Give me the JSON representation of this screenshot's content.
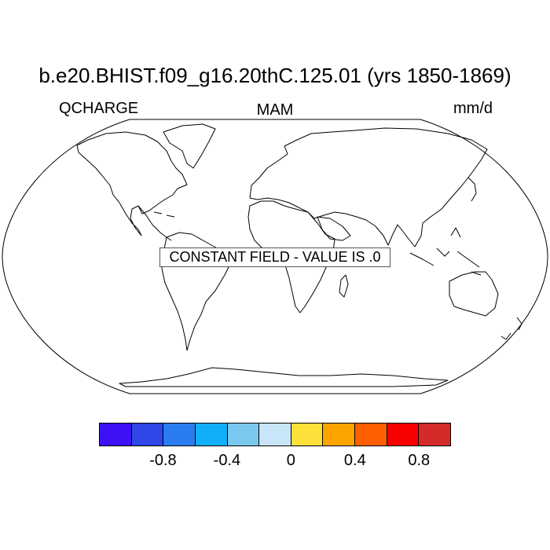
{
  "title": "b.e20.BHIST.f09_g16.20thC.125.01 (yrs 1850-1869)",
  "variable": "QCHARGE",
  "season": "MAM",
  "units": "mm/d",
  "message": "CONSTANT FIELD - VALUE IS .0",
  "colorbar": {
    "colors": [
      "#3d10f5",
      "#2e47e6",
      "#2a7df0",
      "#10aff8",
      "#7ac8ee",
      "#c8e6f7",
      "#fde03a",
      "#fda400",
      "#ff5f00",
      "#f90000",
      "#d52a2a"
    ],
    "labels": [
      "-0.8",
      "-0.4",
      "0",
      "0.4",
      "0.8"
    ]
  }
}
